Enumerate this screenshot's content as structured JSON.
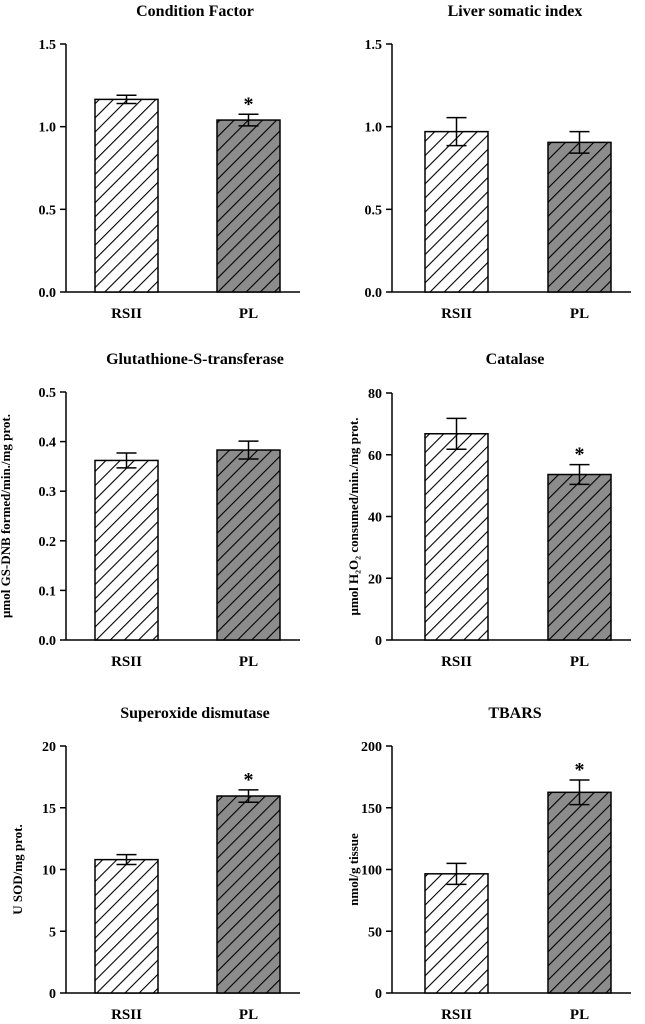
{
  "chart_data": [
    {
      "type": "bar",
      "title": "Condition Factor",
      "ylabel": "",
      "categories": [
        "RSII",
        "PL"
      ],
      "values": [
        1.165,
        1.04
      ],
      "errors": [
        0.025,
        0.035
      ],
      "ylim": [
        0,
        1.5
      ],
      "yticks": [
        "0.0",
        "0.5",
        "1.0",
        "1.5"
      ],
      "significance": [
        "",
        "*"
      ]
    },
    {
      "type": "bar",
      "title": "Liver somatic index",
      "ylabel": "",
      "categories": [
        "RSII",
        "PL"
      ],
      "values": [
        0.97,
        0.905
      ],
      "errors": [
        0.085,
        0.065
      ],
      "ylim": [
        0,
        1.5
      ],
      "yticks": [
        "0.0",
        "0.5",
        "1.0",
        "1.5"
      ],
      "significance": [
        "",
        ""
      ]
    },
    {
      "type": "bar",
      "title": "Glutathione-S-transferase",
      "ylabel": "μmol GS-DNB formed/min./mg prot.",
      "categories": [
        "RSII",
        "PL"
      ],
      "values": [
        0.362,
        0.383
      ],
      "errors": [
        0.015,
        0.018
      ],
      "ylim": [
        0,
        0.5
      ],
      "yticks": [
        "0.0",
        "0.1",
        "0.2",
        "0.3",
        "0.4",
        "0.5"
      ],
      "significance": [
        "",
        ""
      ]
    },
    {
      "type": "bar",
      "title": "Catalase",
      "ylabel": "μmol H₂O₂ consumed/min./mg prot.",
      "categories": [
        "RSII",
        "PL"
      ],
      "values": [
        66.8,
        53.6
      ],
      "errors": [
        5.0,
        3.2
      ],
      "ylim": [
        0,
        80
      ],
      "yticks": [
        "0",
        "20",
        "40",
        "60",
        "80"
      ],
      "significance": [
        "",
        "*"
      ]
    },
    {
      "type": "bar",
      "title": "Superoxide dismutase",
      "ylabel": "U SOD/mg prot.",
      "categories": [
        "RSII",
        "PL"
      ],
      "values": [
        10.8,
        15.95
      ],
      "errors": [
        0.4,
        0.5
      ],
      "ylim": [
        0,
        20
      ],
      "yticks": [
        "0",
        "5",
        "10",
        "15",
        "20"
      ],
      "significance": [
        "",
        "*"
      ]
    },
    {
      "type": "bar",
      "title": "TBARS",
      "ylabel": "nmol/g tissue",
      "categories": [
        "RSII",
        "PL"
      ],
      "values": [
        96.5,
        162.5
      ],
      "errors": [
        8.5,
        10.0
      ],
      "ylim": [
        0,
        200
      ],
      "yticks": [
        "0",
        "50",
        "100",
        "150",
        "200"
      ],
      "significance": [
        "",
        "*"
      ]
    }
  ],
  "colors": {
    "rsii_fill": "#ffffff",
    "pl_fill": "#8c8c8c",
    "stroke": "#000000"
  }
}
